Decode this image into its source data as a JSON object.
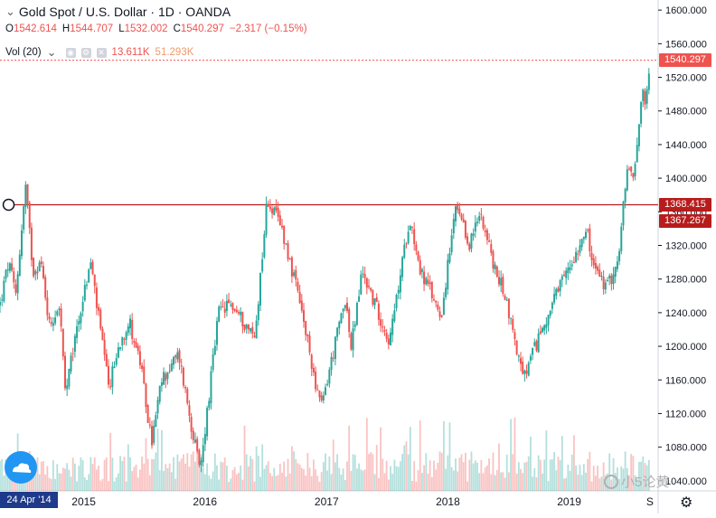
{
  "header": {
    "symbol_dropdown": "⌄",
    "title": "Gold Spot / U.S. Dollar · 1D · OANDA",
    "ohlc": {
      "o_label": "O",
      "o": "1542.614",
      "h_label": "H",
      "h": "1544.707",
      "l_label": "L",
      "l": "1532.002",
      "c_label": "C",
      "c": "1540.297",
      "change": "−2.317 (−0.15%)"
    }
  },
  "volume_indicator": {
    "label": "Vol (20)",
    "dropdown": "⌄",
    "value1": "13.611K",
    "value2": "51.293K"
  },
  "price_tags": {
    "last": "1540.297",
    "line_top": "1368.415",
    "line_bottom": "1367.267"
  },
  "date_tag": "24 Apr '14",
  "watermark": "小5论黄",
  "colors": {
    "up": "#26a69a",
    "down": "#ef5350",
    "hline": "#b71c1c",
    "last_price": "#ef5350",
    "tag_dark": "#b71c1c",
    "text": "#131722",
    "axis_text": "#131722",
    "grid": "#e9ecf1"
  },
  "icons": {
    "logo": "tradingview-cloud-icon",
    "gear": "settings-gear-icon",
    "watermark": "wechat-icon"
  },
  "chart_data": {
    "type": "candlestick",
    "title": "Gold Spot / U.S. Dollar · 1D · OANDA",
    "xlabel": "",
    "ylabel": "",
    "x_ticks": [
      "2015",
      "2016",
      "2017",
      "2018",
      "2019",
      "S"
    ],
    "y_ticks": [
      1040,
      1080,
      1120,
      1160,
      1200,
      1240,
      1280,
      1320,
      1360,
      1400,
      1440,
      1480,
      1520,
      1560,
      1600
    ],
    "y_tick_labels": [
      "1040.000",
      "1080.000",
      "1120.000",
      "1160.000",
      "1200.000",
      "1240.000",
      "1280.000",
      "1320.000",
      "1360.000",
      "1400.000",
      "1440.000",
      "1480.000",
      "1520.000",
      "1560.000",
      "1600.000"
    ],
    "ylim": [
      1028,
      1612
    ],
    "xlim": [
      "2014-04-24",
      "2019-09-04"
    ],
    "horizontal_line": {
      "start": "2014-05-20",
      "value": 1368.4
    },
    "last_price": 1540.297,
    "price_path": [
      {
        "date": "2014-04-24",
        "close": 1250
      },
      {
        "date": "2014-05-20",
        "close": 1300
      },
      {
        "date": "2014-06-10",
        "close": 1260
      },
      {
        "date": "2014-07-10",
        "close": 1390
      },
      {
        "date": "2014-08-01",
        "close": 1290
      },
      {
        "date": "2014-08-25",
        "close": 1300
      },
      {
        "date": "2014-09-20",
        "close": 1225
      },
      {
        "date": "2014-10-20",
        "close": 1250
      },
      {
        "date": "2014-11-07",
        "close": 1140
      },
      {
        "date": "2014-12-10",
        "close": 1220
      },
      {
        "date": "2015-01-22",
        "close": 1300
      },
      {
        "date": "2015-03-17",
        "close": 1150
      },
      {
        "date": "2015-04-20",
        "close": 1205
      },
      {
        "date": "2015-05-18",
        "close": 1230
      },
      {
        "date": "2015-06-20",
        "close": 1180
      },
      {
        "date": "2015-07-24",
        "close": 1085
      },
      {
        "date": "2015-08-24",
        "close": 1160
      },
      {
        "date": "2015-10-14",
        "close": 1190
      },
      {
        "date": "2015-12-17",
        "close": 1050
      },
      {
        "date": "2016-02-11",
        "close": 1240
      },
      {
        "date": "2016-03-20",
        "close": 1250
      },
      {
        "date": "2016-05-30",
        "close": 1210
      },
      {
        "date": "2016-07-06",
        "close": 1375
      },
      {
        "date": "2016-08-20",
        "close": 1340
      },
      {
        "date": "2016-10-10",
        "close": 1255
      },
      {
        "date": "2016-12-15",
        "close": 1125
      },
      {
        "date": "2017-02-27",
        "close": 1260
      },
      {
        "date": "2017-03-15",
        "close": 1195
      },
      {
        "date": "2017-04-18",
        "close": 1290
      },
      {
        "date": "2017-07-10",
        "close": 1205
      },
      {
        "date": "2017-09-08",
        "close": 1355
      },
      {
        "date": "2017-10-10",
        "close": 1290
      },
      {
        "date": "2017-12-12",
        "close": 1237
      },
      {
        "date": "2018-01-25",
        "close": 1365
      },
      {
        "date": "2018-03-05",
        "close": 1320
      },
      {
        "date": "2018-04-11",
        "close": 1360
      },
      {
        "date": "2018-05-22",
        "close": 1290
      },
      {
        "date": "2018-06-20",
        "close": 1265
      },
      {
        "date": "2018-08-16",
        "close": 1160
      },
      {
        "date": "2018-10-15",
        "close": 1225
      },
      {
        "date": "2019-01-30",
        "close": 1320
      },
      {
        "date": "2019-02-20",
        "close": 1345
      },
      {
        "date": "2019-03-10",
        "close": 1300
      },
      {
        "date": "2019-04-23",
        "close": 1268
      },
      {
        "date": "2019-05-31",
        "close": 1305
      },
      {
        "date": "2019-06-20",
        "close": 1400
      },
      {
        "date": "2019-07-15",
        "close": 1410
      },
      {
        "date": "2019-08-07",
        "close": 1500
      },
      {
        "date": "2019-08-22",
        "close": 1495
      },
      {
        "date": "2019-09-04",
        "close": 1540
      }
    ],
    "volume": {
      "label": "Vol (20)",
      "range_k": [
        10,
        90
      ]
    }
  }
}
